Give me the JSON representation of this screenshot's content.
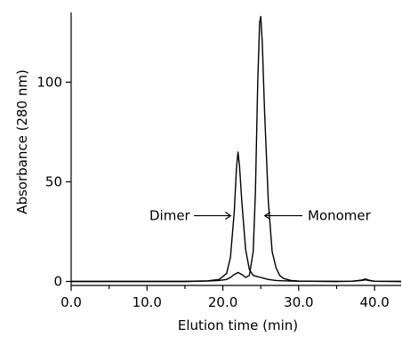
{
  "chart_data": {
    "type": "line",
    "title": "",
    "xlabel": "Elution time (min)",
    "ylabel": "Absorbance (280 nm)",
    "xlim": [
      0,
      43.5
    ],
    "ylim": [
      -2,
      135
    ],
    "x_ticks": [
      0,
      10,
      20,
      30,
      40
    ],
    "x_tick_labels": [
      "0.0",
      "10.0",
      "20.0",
      "30.0",
      "40.0"
    ],
    "y_ticks": [
      0,
      50,
      100
    ],
    "y_tick_labels": [
      "0",
      "50",
      "100"
    ],
    "grid": false,
    "series": [
      {
        "x": [
          0,
          15,
          18,
          19.5,
          20.5,
          21,
          21.5,
          21.8,
          22,
          22.2,
          22.5,
          23,
          23.5,
          24,
          24.5,
          25,
          25.5,
          26,
          27,
          28,
          29,
          30,
          32,
          35,
          37,
          38.3,
          38.8,
          39.3,
          40,
          43.5
        ],
        "values": [
          0,
          0,
          0.3,
          1,
          4,
          12,
          35,
          57,
          65,
          58,
          40,
          16,
          6,
          3,
          2.5,
          2,
          1.5,
          1,
          0.5,
          0.3,
          0.2,
          0.1,
          0.1,
          0,
          0.1,
          0.7,
          1.2,
          0.6,
          0.1,
          0
        ]
      },
      {
        "x": [
          0,
          15,
          18,
          19.5,
          20.5,
          21,
          21.5,
          22,
          22.5,
          23,
          23.5,
          24,
          24.3,
          24.6,
          24.85,
          25,
          25.2,
          25.5,
          26,
          26.5,
          27,
          27.5,
          28,
          29,
          30,
          32,
          35,
          37,
          38.3,
          38.8,
          39.3,
          40,
          43.5
        ],
        "values": [
          0,
          0,
          0.2,
          0.5,
          1,
          2,
          3.5,
          4.5,
          3.5,
          2,
          3,
          15,
          45,
          100,
          130,
          133,
          120,
          85,
          40,
          15,
          7,
          3,
          1.5,
          0.5,
          0.2,
          0.1,
          0,
          0.1,
          0.5,
          0.8,
          0.4,
          0.1,
          0
        ]
      }
    ],
    "annotations": [
      {
        "text": "Dimer",
        "arrow_to": [
          21.5,
          33
        ]
      },
      {
        "text": "Monomer",
        "arrow_to": [
          26,
          33
        ]
      }
    ]
  }
}
